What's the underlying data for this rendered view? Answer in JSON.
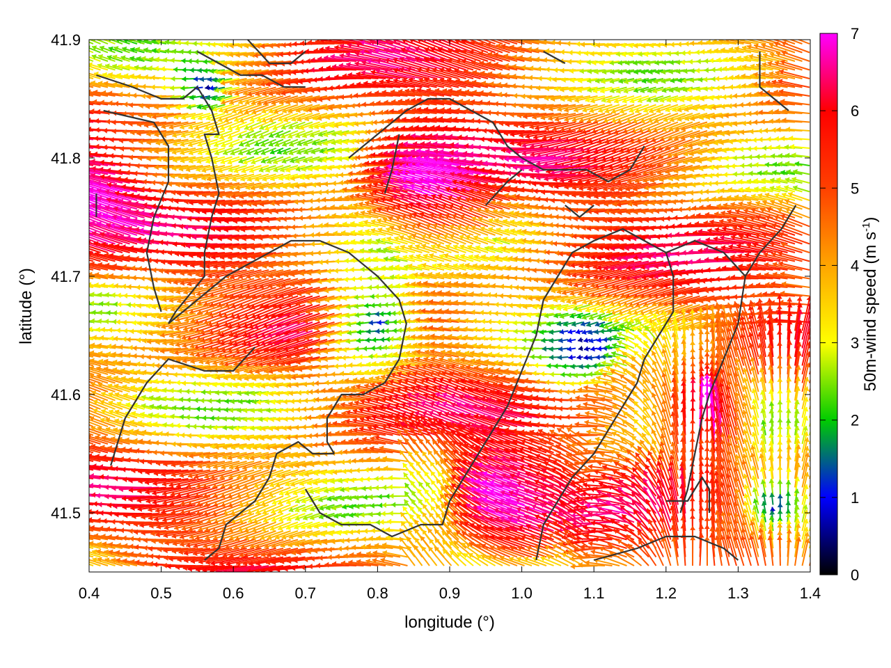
{
  "chart_data": {
    "type": "vector-field",
    "title": "",
    "xlabel": "longitude (°)",
    "ylabel": "latitude (°)",
    "xlim": [
      0.4,
      1.4
    ],
    "ylim": [
      41.45,
      41.9
    ],
    "xticks": [
      "0.4",
      "0.5",
      "0.6",
      "0.7",
      "0.8",
      "0.9",
      "1.0",
      "1.1",
      "1.2",
      "1.3",
      "1.4"
    ],
    "yticks": [
      "41.5",
      "41.6",
      "41.7",
      "41.8",
      "41.9"
    ],
    "colorbar": {
      "label_main": "50m-wind speed (m s",
      "label_sup": "-1",
      "label_close": ")",
      "range": [
        0,
        7
      ],
      "ticks": [
        "0",
        "1",
        "2",
        "3",
        "4",
        "5",
        "6",
        "7"
      ],
      "palette": [
        "#000000",
        "#0000ff",
        "#00cc00",
        "#ffff00",
        "#ffa500",
        "#ff4000",
        "#ff0000",
        "#ff00ff"
      ]
    },
    "grid": false,
    "wind_field": {
      "note_units": "m s-1",
      "calm_zones": [
        {
          "lon": 0.81,
          "lat": 41.66,
          "radius_deg": 0.1
        },
        {
          "lon": 1.09,
          "lat": 41.64,
          "radius_deg": 0.07
        },
        {
          "lon": 1.35,
          "lat": 41.5,
          "radius_deg": 0.05
        },
        {
          "lon": 0.57,
          "lat": 41.86,
          "radius_deg": 0.05
        }
      ],
      "strong_zones": [
        {
          "lon": 0.42,
          "lat": 41.76,
          "radius_deg": 0.12,
          "speed": 7
        },
        {
          "lon": 0.9,
          "lat": 41.78,
          "radius_deg": 0.12,
          "speed": 7
        },
        {
          "lon": 1.0,
          "lat": 41.51,
          "radius_deg": 0.1,
          "speed": 7
        },
        {
          "lon": 1.26,
          "lat": 41.57,
          "radius_deg": 0.08,
          "speed": 7
        }
      ]
    },
    "boundaries": [
      [
        [
          0.41,
          41.87
        ],
        [
          0.46,
          41.86
        ],
        [
          0.5,
          41.85
        ],
        [
          0.53,
          41.85
        ],
        [
          0.55,
          41.86
        ],
        [
          0.56,
          41.85
        ],
        [
          0.57,
          41.84
        ],
        [
          0.58,
          41.82
        ],
        [
          0.56,
          41.82
        ],
        [
          0.57,
          41.8
        ],
        [
          0.58,
          41.77
        ],
        [
          0.57,
          41.75
        ],
        [
          0.56,
          41.72
        ],
        [
          0.56,
          41.7
        ],
        [
          0.52,
          41.67
        ],
        [
          0.51,
          41.66
        ]
      ],
      [
        [
          0.42,
          41.84
        ],
        [
          0.49,
          41.83
        ],
        [
          0.51,
          41.81
        ],
        [
          0.51,
          41.78
        ],
        [
          0.49,
          41.75
        ],
        [
          0.48,
          41.72
        ],
        [
          0.49,
          41.69
        ],
        [
          0.5,
          41.67
        ]
      ],
      [
        [
          0.41,
          41.77
        ],
        [
          0.41,
          41.75
        ]
      ],
      [
        [
          0.51,
          41.66
        ],
        [
          0.55,
          41.68
        ],
        [
          0.59,
          41.7
        ],
        [
          0.62,
          41.71
        ],
        [
          0.65,
          41.72
        ],
        [
          0.68,
          41.73
        ],
        [
          0.72,
          41.73
        ],
        [
          0.76,
          41.72
        ],
        [
          0.8,
          41.7
        ],
        [
          0.83,
          41.68
        ],
        [
          0.84,
          41.66
        ],
        [
          0.83,
          41.63
        ],
        [
          0.81,
          41.61
        ],
        [
          0.78,
          41.6
        ],
        [
          0.75,
          41.6
        ],
        [
          0.73,
          41.58
        ],
        [
          0.73,
          41.56
        ],
        [
          0.74,
          41.55
        ]
      ],
      [
        [
          0.63,
          41.64
        ],
        [
          0.6,
          41.62
        ],
        [
          0.56,
          41.62
        ],
        [
          0.51,
          41.63
        ],
        [
          0.48,
          41.61
        ],
        [
          0.45,
          41.58
        ],
        [
          0.44,
          41.56
        ],
        [
          0.43,
          41.54
        ]
      ],
      [
        [
          0.74,
          41.55
        ],
        [
          0.71,
          41.55
        ],
        [
          0.69,
          41.56
        ],
        [
          0.66,
          41.55
        ],
        [
          0.65,
          41.53
        ],
        [
          0.63,
          41.51
        ],
        [
          0.61,
          41.5
        ],
        [
          0.59,
          41.49
        ],
        [
          0.58,
          41.47
        ],
        [
          0.56,
          41.46
        ]
      ],
      [
        [
          0.7,
          41.52
        ],
        [
          0.72,
          41.5
        ],
        [
          0.75,
          41.49
        ],
        [
          0.79,
          41.49
        ],
        [
          0.82,
          41.48
        ],
        [
          0.86,
          41.49
        ],
        [
          0.89,
          41.49
        ],
        [
          0.9,
          41.51
        ],
        [
          0.92,
          41.53
        ],
        [
          0.94,
          41.55
        ],
        [
          0.96,
          41.57
        ],
        [
          0.98,
          41.59
        ],
        [
          1.0,
          41.62
        ],
        [
          1.02,
          41.65
        ],
        [
          1.03,
          41.68
        ],
        [
          1.05,
          41.7
        ]
      ],
      [
        [
          1.05,
          41.7
        ],
        [
          1.07,
          41.72
        ],
        [
          1.1,
          41.73
        ],
        [
          1.14,
          41.74
        ],
        [
          1.17,
          41.73
        ],
        [
          1.2,
          41.72
        ],
        [
          1.21,
          41.7
        ],
        [
          1.21,
          41.67
        ],
        [
          1.19,
          41.65
        ],
        [
          1.17,
          41.63
        ],
        [
          1.16,
          41.61
        ],
        [
          1.14,
          41.59
        ],
        [
          1.12,
          41.57
        ],
        [
          1.1,
          41.55
        ],
        [
          1.07,
          41.53
        ],
        [
          1.05,
          41.51
        ],
        [
          1.03,
          41.49
        ],
        [
          1.02,
          41.46
        ]
      ],
      [
        [
          1.2,
          41.72
        ],
        [
          1.24,
          41.73
        ],
        [
          1.28,
          41.72
        ],
        [
          1.31,
          41.7
        ],
        [
          1.33,
          41.72
        ],
        [
          1.36,
          41.74
        ],
        [
          1.38,
          41.76
        ]
      ],
      [
        [
          1.31,
          41.7
        ],
        [
          1.3,
          41.66
        ],
        [
          1.28,
          41.63
        ],
        [
          1.26,
          41.6
        ],
        [
          1.25,
          41.58
        ],
        [
          1.24,
          41.55
        ],
        [
          1.23,
          41.52
        ],
        [
          1.22,
          41.5
        ]
      ],
      [
        [
          1.2,
          41.51
        ],
        [
          1.23,
          41.51
        ],
        [
          1.25,
          41.53
        ],
        [
          1.26,
          41.52
        ],
        [
          1.26,
          41.5
        ]
      ],
      [
        [
          1.1,
          41.46
        ],
        [
          1.16,
          41.47
        ],
        [
          1.2,
          41.48
        ],
        [
          1.24,
          41.48
        ],
        [
          1.28,
          41.47
        ],
        [
          1.3,
          41.46
        ]
      ],
      [
        [
          0.76,
          41.8
        ],
        [
          0.8,
          41.82
        ],
        [
          0.84,
          41.84
        ],
        [
          0.87,
          41.85
        ],
        [
          0.9,
          41.85
        ],
        [
          0.93,
          41.84
        ],
        [
          0.96,
          41.83
        ],
        [
          0.98,
          41.81
        ],
        [
          1.0,
          41.8
        ]
      ],
      [
        [
          1.0,
          41.8
        ],
        [
          1.03,
          41.79
        ],
        [
          1.06,
          41.79
        ],
        [
          1.09,
          41.79
        ],
        [
          1.12,
          41.78
        ],
        [
          1.15,
          41.79
        ],
        [
          1.17,
          41.81
        ]
      ],
      [
        [
          0.55,
          41.89
        ],
        [
          0.58,
          41.88
        ],
        [
          0.61,
          41.87
        ],
        [
          0.64,
          41.87
        ],
        [
          0.67,
          41.86
        ],
        [
          0.7,
          41.86
        ]
      ],
      [
        [
          0.62,
          41.9
        ],
        [
          0.65,
          41.88
        ],
        [
          0.68,
          41.88
        ],
        [
          0.7,
          41.89
        ]
      ],
      [
        [
          0.83,
          41.82
        ],
        [
          0.82,
          41.79
        ],
        [
          0.81,
          41.77
        ]
      ],
      [
        [
          1.33,
          41.89
        ],
        [
          1.33,
          41.86
        ],
        [
          1.35,
          41.85
        ],
        [
          1.37,
          41.84
        ]
      ],
      [
        [
          1.03,
          41.89
        ],
        [
          1.06,
          41.88
        ]
      ],
      [
        [
          0.95,
          41.76
        ],
        [
          0.98,
          41.78
        ],
        [
          1.0,
          41.79
        ]
      ],
      [
        [
          1.06,
          41.76
        ],
        [
          1.08,
          41.75
        ],
        [
          1.1,
          41.76
        ]
      ]
    ]
  }
}
